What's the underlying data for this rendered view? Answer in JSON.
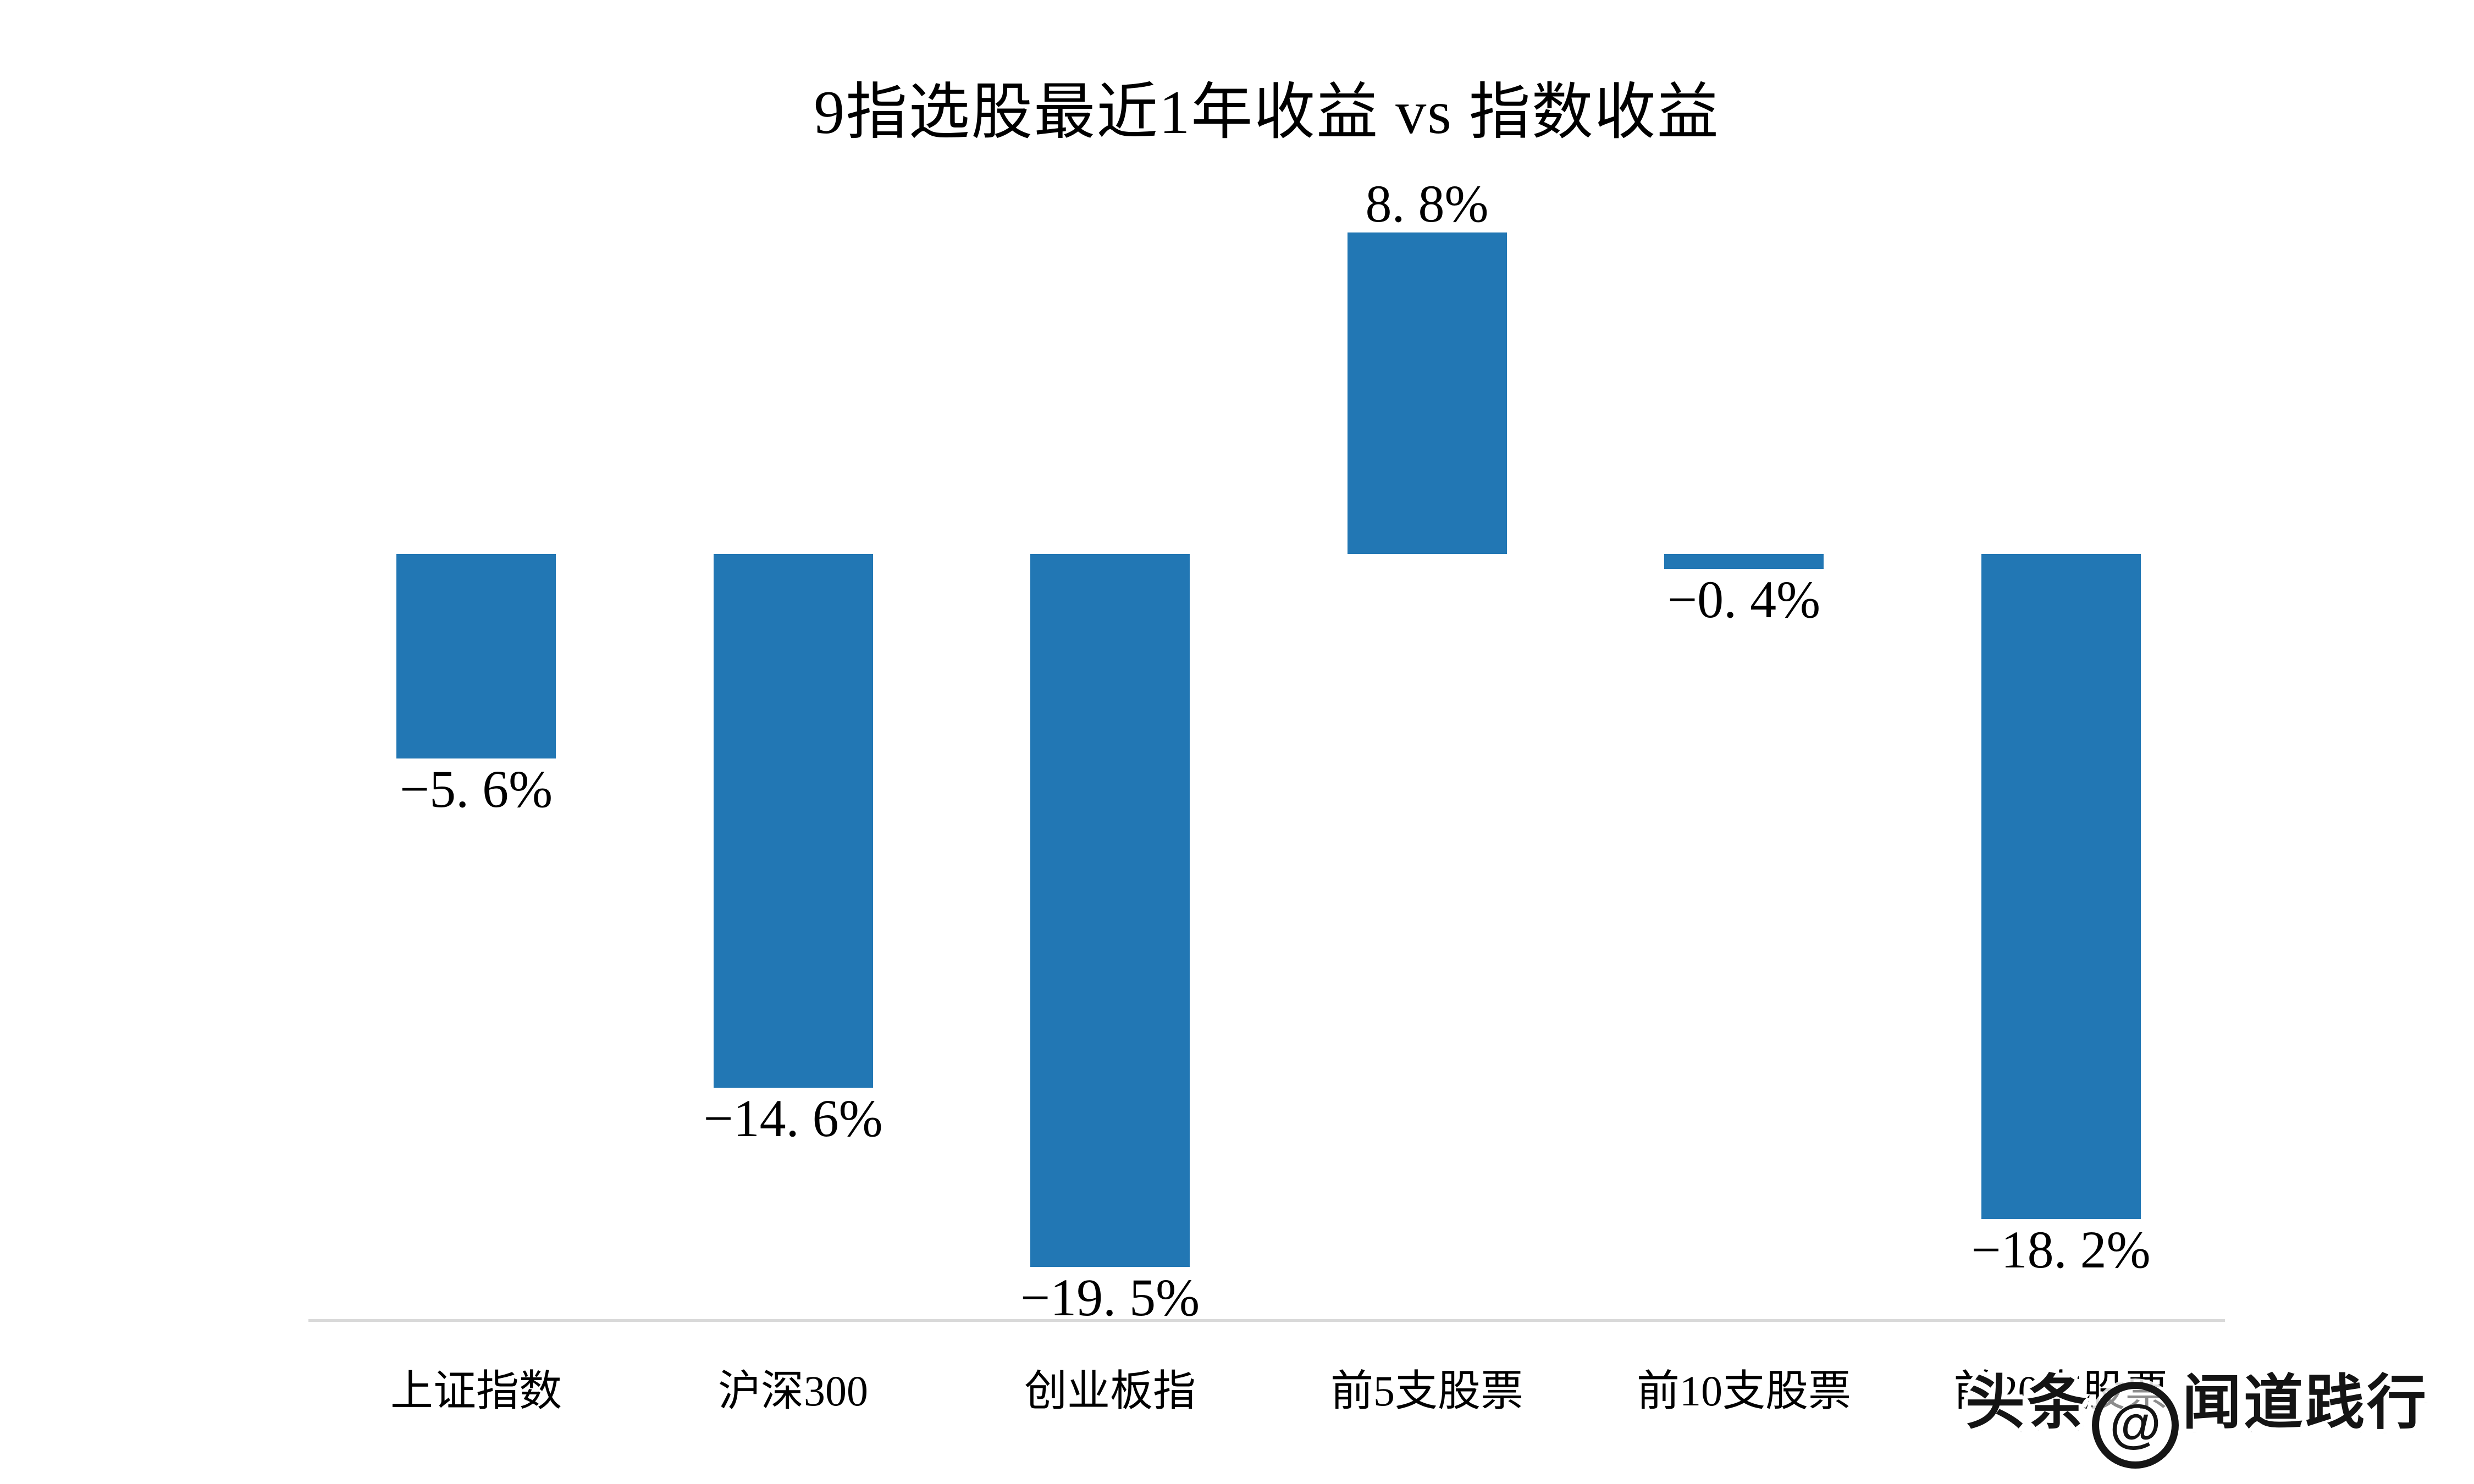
{
  "chart_data": {
    "type": "bar",
    "title": "9指选股最近1年收益 vs 指数收益",
    "categories": [
      "上证指数",
      "沪深300",
      "创业板指",
      "前5支股票",
      "前10支股票",
      "前20支股票"
    ],
    "values": [
      -5.6,
      -14.6,
      -19.5,
      8.8,
      -0.4,
      -18.2
    ],
    "value_labels": [
      "−5. 6%",
      "−14. 6%",
      "−19. 5%",
      "8. 8%",
      "−0. 4%",
      "−18. 2%"
    ],
    "xlabel": "",
    "ylabel": "",
    "ylim": [
      -21,
      10
    ],
    "grid": false,
    "legend": "none",
    "bar_color": "#2277b4",
    "axis_line_color": "#d9d9d9",
    "label_color": "#000000"
  },
  "watermark": {
    "prefix": "头条",
    "at": "@",
    "suffix": "闻道践行"
  }
}
